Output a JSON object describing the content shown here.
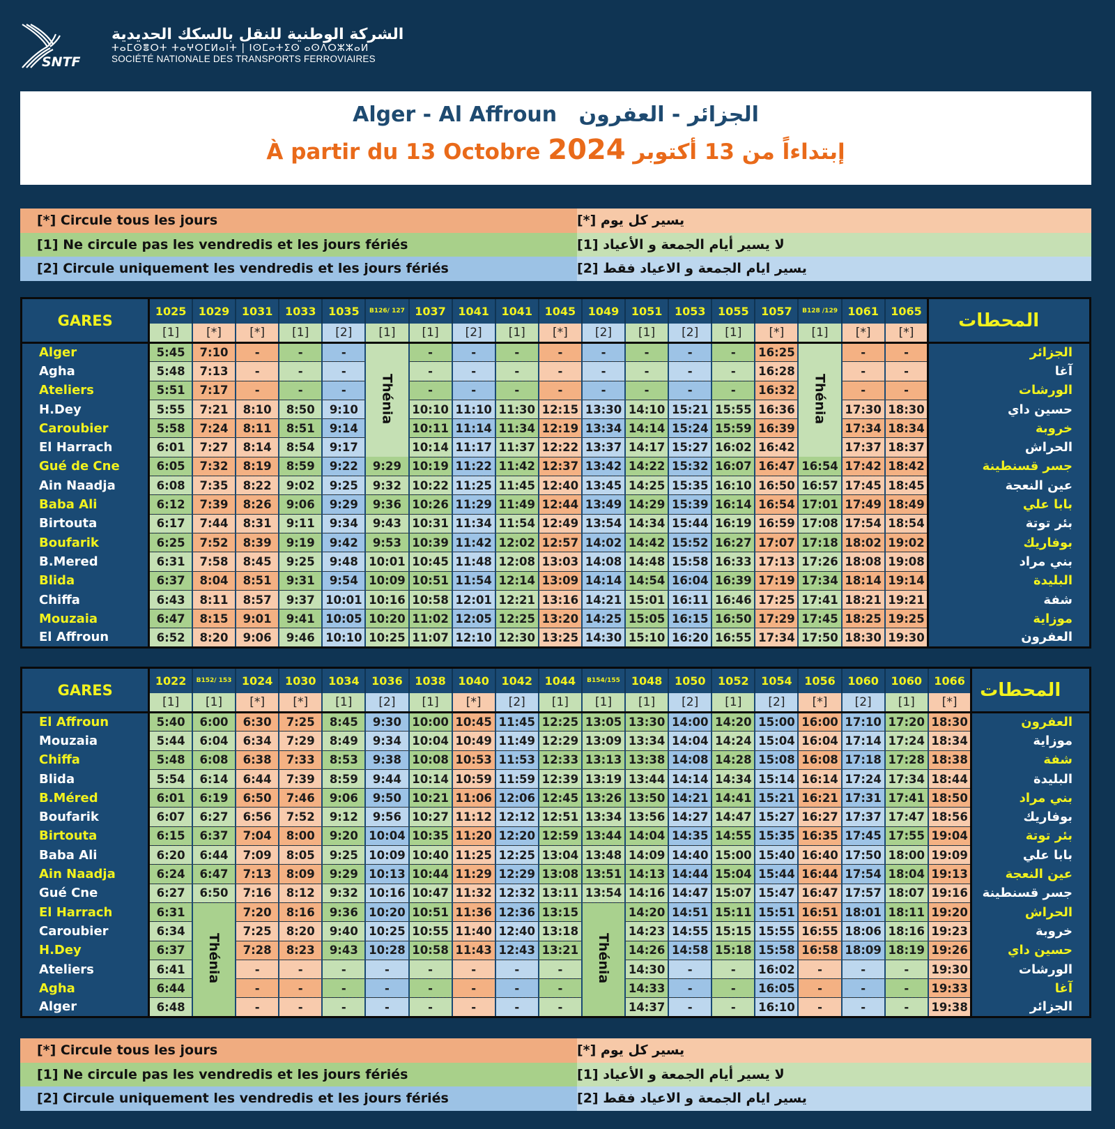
{
  "header": {
    "logo_text": "SNTF",
    "company_ar": "الشركة الوطنية للنقل بالسكك الحديدية",
    "company_tifinagh": "ⵜⴰⵎⵙⴻⵔⵜ ⵜⴰⵖⵔⵎⵍⴰⵏⵜ | ⵏⵙⵎⴰⵜⵉⵙ ⴰⵙⴷⵔⵣⵣⴰⵍ",
    "company_fr": "SOCIÉTÉ NATIONALE DES TRANSPORTS FERROVIAIRES"
  },
  "title": {
    "route_fr": "Alger - Al Affroun",
    "route_ar": "الجزائر - العفرون",
    "validity_fr": "À partir du 13 Octobre",
    "year": "2024",
    "validity_ar": "إبتداءاً من 13 أكتوبر"
  },
  "colors": {
    "background": "#0f3453",
    "header": "#1a4a74",
    "station_highlight": "#f2f21e",
    "title_blue": "#1e4a70",
    "title_orange": "#e96a1a",
    "type_star": "#f4b183",
    "type_1": "#a9d18e",
    "type_2": "#9dc3e6"
  },
  "legend": [
    {
      "type": "*",
      "fr": "[*]  Circule tous les jours",
      "ar": "يسير كل يوم [*]"
    },
    {
      "type": "1",
      "fr": "[1]  Ne circule pas les vendredis et les jours fériés",
      "ar": "لا يسير أيام الجمعة و الأعياد [1]"
    },
    {
      "type": "2",
      "fr": "[2]  Circule uniquement les vendredis et les jours fériés",
      "ar": "يسير ايام الجمعة و الاعياد  فقط [2]"
    }
  ],
  "tables": [
    {
      "gares_label": "GARES",
      "stations_label_ar": "المحطات",
      "trains": [
        {
          "num": "1025",
          "type": "1"
        },
        {
          "num": "1029",
          "type": "*"
        },
        {
          "num": "1031",
          "type": "*"
        },
        {
          "num": "1033",
          "type": "1"
        },
        {
          "num": "1035",
          "type": "2"
        },
        {
          "num": "B126/ 127",
          "type": "1"
        },
        {
          "num": "1037",
          "type": "1"
        },
        {
          "num": "1041",
          "type": "2"
        },
        {
          "num": "1041",
          "type": "1"
        },
        {
          "num": "1045",
          "type": "*"
        },
        {
          "num": "1049",
          "type": "2"
        },
        {
          "num": "1051",
          "type": "1"
        },
        {
          "num": "1053",
          "type": "2"
        },
        {
          "num": "1055",
          "type": "1"
        },
        {
          "num": "1057",
          "type": "*"
        },
        {
          "num": "B128 /129",
          "type": "1"
        },
        {
          "num": "1061",
          "type": "*"
        },
        {
          "num": "1065",
          "type": "*"
        }
      ],
      "merged": [
        {
          "column": 5,
          "from_row": 0,
          "to_row": 5,
          "label": "Thénia"
        },
        {
          "column": 15,
          "from_row": 0,
          "to_row": 5,
          "label": "Thénia"
        }
      ],
      "stations": [
        {
          "fr": "Alger",
          "ar": "الجزائر",
          "times": [
            "5:45",
            "7:10",
            "-",
            "-",
            "-",
            null,
            "-",
            "-",
            "-",
            "-",
            "-",
            "-",
            "-",
            "-",
            "16:25",
            null,
            "-",
            "-"
          ]
        },
        {
          "fr": "Agha",
          "ar": "آغا",
          "times": [
            "5:48",
            "7:13",
            "-",
            "-",
            "-",
            null,
            "-",
            "-",
            "-",
            "-",
            "-",
            "-",
            "-",
            "-",
            "16:28",
            null,
            "-",
            "-"
          ]
        },
        {
          "fr": "Ateliers",
          "ar": "الورشات",
          "times": [
            "5:51",
            "7:17",
            "-",
            "-",
            "-",
            null,
            "-",
            "-",
            "-",
            "-",
            "-",
            "-",
            "-",
            "-",
            "16:32",
            null,
            "-",
            "-"
          ]
        },
        {
          "fr": "H.Dey",
          "ar": "حسين داي",
          "times": [
            "5:55",
            "7:21",
            "8:10",
            "8:50",
            "9:10",
            null,
            "10:10",
            "11:10",
            "11:30",
            "12:15",
            "13:30",
            "14:10",
            "15:21",
            "15:55",
            "16:36",
            null,
            "17:30",
            "18:30"
          ]
        },
        {
          "fr": "Caroubier",
          "ar": "خروبة",
          "times": [
            "5:58",
            "7:24",
            "8:11",
            "8:51",
            "9:14",
            null,
            "10:11",
            "11:14",
            "11:34",
            "12:19",
            "13:34",
            "14:14",
            "15:24",
            "15:59",
            "16:39",
            null,
            "17:34",
            "18:34"
          ]
        },
        {
          "fr": "El Harrach",
          "ar": "الحراش",
          "times": [
            "6:01",
            "7:27",
            "8:14",
            "8:54",
            "9:17",
            null,
            "10:14",
            "11:17",
            "11:37",
            "12:22",
            "13:37",
            "14:17",
            "15:27",
            "16:02",
            "16:42",
            null,
            "17:37",
            "18:37"
          ]
        },
        {
          "fr": "Gué de Cne",
          "ar": "جسر قسنطينة",
          "times": [
            "6:05",
            "7:32",
            "8:19",
            "8:59",
            "9:22",
            "9:29",
            "10:19",
            "11:22",
            "11:42",
            "12:37",
            "13:42",
            "14:22",
            "15:32",
            "16:07",
            "16:47",
            "16:54",
            "17:42",
            "18:42"
          ]
        },
        {
          "fr": "Ain Naadja",
          "ar": "عين النعجة",
          "times": [
            "6:08",
            "7:35",
            "8:22",
            "9:02",
            "9:25",
            "9:32",
            "10:22",
            "11:25",
            "11:45",
            "12:40",
            "13:45",
            "14:25",
            "15:35",
            "16:10",
            "16:50",
            "16:57",
            "17:45",
            "18:45"
          ]
        },
        {
          "fr": "Baba Ali",
          "ar": "بابا علي",
          "times": [
            "6:12",
            "7:39",
            "8:26",
            "9:06",
            "9:29",
            "9:36",
            "10:26",
            "11:29",
            "11:49",
            "12:44",
            "13:49",
            "14:29",
            "15:39",
            "16:14",
            "16:54",
            "17:01",
            "17:49",
            "18:49"
          ]
        },
        {
          "fr": "Birtouta",
          "ar": "بئر توتة",
          "times": [
            "6:17",
            "7:44",
            "8:31",
            "9:11",
            "9:34",
            "9:43",
            "10:31",
            "11:34",
            "11:54",
            "12:49",
            "13:54",
            "14:34",
            "15:44",
            "16:19",
            "16:59",
            "17:08",
            "17:54",
            "18:54"
          ]
        },
        {
          "fr": "Boufarik",
          "ar": "بوفاريك",
          "times": [
            "6:25",
            "7:52",
            "8:39",
            "9:19",
            "9:42",
            "9:53",
            "10:39",
            "11:42",
            "12:02",
            "12:57",
            "14:02",
            "14:42",
            "15:52",
            "16:27",
            "17:07",
            "17:18",
            "18:02",
            "19:02"
          ]
        },
        {
          "fr": "B.Mered",
          "ar": "بني مراد",
          "times": [
            "6:31",
            "7:58",
            "8:45",
            "9:25",
            "9:48",
            "10:01",
            "10:45",
            "11:48",
            "12:08",
            "13:03",
            "14:08",
            "14:48",
            "15:58",
            "16:33",
            "17:13",
            "17:26",
            "18:08",
            "19:08"
          ]
        },
        {
          "fr": "Blida",
          "ar": "البليدة",
          "times": [
            "6:37",
            "8:04",
            "8:51",
            "9:31",
            "9:54",
            "10:09",
            "10:51",
            "11:54",
            "12:14",
            "13:09",
            "14:14",
            "14:54",
            "16:04",
            "16:39",
            "17:19",
            "17:34",
            "18:14",
            "19:14"
          ]
        },
        {
          "fr": "Chiffa",
          "ar": "شفة",
          "times": [
            "6:43",
            "8:11",
            "8:57",
            "9:37",
            "10:01",
            "10:16",
            "10:58",
            "12:01",
            "12:21",
            "13:16",
            "14:21",
            "15:01",
            "16:11",
            "16:46",
            "17:25",
            "17:41",
            "18:21",
            "19:21"
          ]
        },
        {
          "fr": "Mouzaia",
          "ar": "موزاية",
          "times": [
            "6:47",
            "8:15",
            "9:01",
            "9:41",
            "10:05",
            "10:20",
            "11:02",
            "12:05",
            "12:25",
            "13:20",
            "14:25",
            "15:05",
            "16:15",
            "16:50",
            "17:29",
            "17:45",
            "18:25",
            "19:25"
          ]
        },
        {
          "fr": "El Affroun",
          "ar": "العفرون",
          "times": [
            "6:52",
            "8:20",
            "9:06",
            "9:46",
            "10:10",
            "10:25",
            "11:07",
            "12:10",
            "12:30",
            "13:25",
            "14:30",
            "15:10",
            "16:20",
            "16:55",
            "17:34",
            "17:50",
            "18:30",
            "19:30"
          ]
        }
      ]
    },
    {
      "gares_label": "GARES",
      "stations_label_ar": "المحطات",
      "trains": [
        {
          "num": "1022",
          "type": "1"
        },
        {
          "num": "B152/ 153",
          "type": "1"
        },
        {
          "num": "1024",
          "type": "*"
        },
        {
          "num": "1030",
          "type": "*"
        },
        {
          "num": "1034",
          "type": "1"
        },
        {
          "num": "1036",
          "type": "2"
        },
        {
          "num": "1038",
          "type": "1"
        },
        {
          "num": "1040",
          "type": "*"
        },
        {
          "num": "1042",
          "type": "2"
        },
        {
          "num": "1044",
          "type": "1"
        },
        {
          "num": "B154/155",
          "type": "1"
        },
        {
          "num": "1048",
          "type": "1"
        },
        {
          "num": "1050",
          "type": "2"
        },
        {
          "num": "1052",
          "type": "1"
        },
        {
          "num": "1054",
          "type": "2"
        },
        {
          "num": "1056",
          "type": "*"
        },
        {
          "num": "1060",
          "type": "2"
        },
        {
          "num": "1060",
          "type": "1"
        },
        {
          "num": "1066",
          "type": "*"
        }
      ],
      "merged": [
        {
          "column": 1,
          "from_row": 10,
          "to_row": 15,
          "label": "Thénia"
        },
        {
          "column": 10,
          "from_row": 10,
          "to_row": 15,
          "label": "Thénia"
        }
      ],
      "stations": [
        {
          "fr": "El Affroun",
          "ar": "العفرون",
          "times": [
            "5:40",
            "6:00",
            "6:30",
            "7:25",
            "8:45",
            "9:30",
            "10:00",
            "10:45",
            "11:45",
            "12:25",
            "13:05",
            "13:30",
            "14:00",
            "14:20",
            "15:00",
            "16:00",
            "17:10",
            "17:20",
            "18:30"
          ]
        },
        {
          "fr": "Mouzaia",
          "ar": "موزاية",
          "times": [
            "5:44",
            "6:04",
            "6:34",
            "7:29",
            "8:49",
            "9:34",
            "10:04",
            "10:49",
            "11:49",
            "12:29",
            "13:09",
            "13:34",
            "14:04",
            "14:24",
            "15:04",
            "16:04",
            "17:14",
            "17:24",
            "18:34"
          ]
        },
        {
          "fr": "Chiffa",
          "ar": "شفة",
          "times": [
            "5:48",
            "6:08",
            "6:38",
            "7:33",
            "8:53",
            "9:38",
            "10:08",
            "10:53",
            "11:53",
            "12:33",
            "13:13",
            "13:38",
            "14:08",
            "14:28",
            "15:08",
            "16:08",
            "17:18",
            "17:28",
            "18:38"
          ]
        },
        {
          "fr": "Blida",
          "ar": "البليدة",
          "times": [
            "5:54",
            "6:14",
            "6:44",
            "7:39",
            "8:59",
            "9:44",
            "10:14",
            "10:59",
            "11:59",
            "12:39",
            "13:19",
            "13:44",
            "14:14",
            "14:34",
            "15:14",
            "16:14",
            "17:24",
            "17:34",
            "18:44"
          ]
        },
        {
          "fr": "B.Méred",
          "ar": "بني مراد",
          "times": [
            "6:01",
            "6:19",
            "6:50",
            "7:46",
            "9:06",
            "9:50",
            "10:21",
            "11:06",
            "12:06",
            "12:45",
            "13:26",
            "13:50",
            "14:21",
            "14:41",
            "15:21",
            "16:21",
            "17:31",
            "17:41",
            "18:50"
          ]
        },
        {
          "fr": "Boufarik",
          "ar": "بوفاريك",
          "times": [
            "6:07",
            "6:27",
            "6:56",
            "7:52",
            "9:12",
            "9:56",
            "10:27",
            "11:12",
            "12:12",
            "12:51",
            "13:34",
            "13:56",
            "14:27",
            "14:47",
            "15:27",
            "16:27",
            "17:37",
            "17:47",
            "18:56"
          ]
        },
        {
          "fr": "Birtouta",
          "ar": "بئر توتة",
          "times": [
            "6:15",
            "6:37",
            "7:04",
            "8:00",
            "9:20",
            "10:04",
            "10:35",
            "11:20",
            "12:20",
            "12:59",
            "13:44",
            "14:04",
            "14:35",
            "14:55",
            "15:35",
            "16:35",
            "17:45",
            "17:55",
            "19:04"
          ]
        },
        {
          "fr": "Baba Ali",
          "ar": "بابا علي",
          "times": [
            "6:20",
            "6:44",
            "7:09",
            "8:05",
            "9:25",
            "10:09",
            "10:40",
            "11:25",
            "12:25",
            "13:04",
            "13:48",
            "14:09",
            "14:40",
            "15:00",
            "15:40",
            "16:40",
            "17:50",
            "18:00",
            "19:09"
          ]
        },
        {
          "fr": "Ain Naadja",
          "ar": "عين النعجة",
          "times": [
            "6:24",
            "6:47",
            "7:13",
            "8:09",
            "9:29",
            "10:13",
            "10:44",
            "11:29",
            "12:29",
            "13:08",
            "13:51",
            "14:13",
            "14:44",
            "15:04",
            "15:44",
            "16:44",
            "17:54",
            "18:04",
            "19:13"
          ]
        },
        {
          "fr": "Gué Cne",
          "ar": "جسر قسنطينة",
          "times": [
            "6:27",
            "6:50",
            "7:16",
            "8:12",
            "9:32",
            "10:16",
            "10:47",
            "11:32",
            "12:32",
            "13:11",
            "13:54",
            "14:16",
            "14:47",
            "15:07",
            "15:47",
            "16:47",
            "17:57",
            "18:07",
            "19:16"
          ]
        },
        {
          "fr": "El Harrach",
          "ar": "الحراش",
          "times": [
            "6:31",
            null,
            "7:20",
            "8:16",
            "9:36",
            "10:20",
            "10:51",
            "11:36",
            "12:36",
            "13:15",
            null,
            "14:20",
            "14:51",
            "15:11",
            "15:51",
            "16:51",
            "18:01",
            "18:11",
            "19:20"
          ]
        },
        {
          "fr": "Caroubier",
          "ar": "خروبة",
          "times": [
            "6:34",
            null,
            "7:25",
            "8:20",
            "9:40",
            "10:25",
            "10:55",
            "11:40",
            "12:40",
            "13:18",
            null,
            "14:23",
            "14:55",
            "15:15",
            "15:55",
            "16:55",
            "18:06",
            "18:16",
            "19:23"
          ]
        },
        {
          "fr": "H.Dey",
          "ar": "حسين داي",
          "times": [
            "6:37",
            null,
            "7:28",
            "8:23",
            "9:43",
            "10:28",
            "10:58",
            "11:43",
            "12:43",
            "13:21",
            null,
            "14:26",
            "14:58",
            "15:18",
            "15:58",
            "16:58",
            "18:09",
            "18:19",
            "19:26"
          ]
        },
        {
          "fr": "Ateliers",
          "ar": "الورشات",
          "times": [
            "6:41",
            null,
            "-",
            "-",
            "-",
            "-",
            "-",
            "-",
            "-",
            "-",
            null,
            "14:30",
            "-",
            "-",
            "16:02",
            "-",
            "-",
            "-",
            "19:30"
          ]
        },
        {
          "fr": "Agha",
          "ar": "آغا",
          "times": [
            "6:44",
            null,
            "-",
            "-",
            "-",
            "-",
            "-",
            "-",
            "-",
            "-",
            null,
            "14:33",
            "-",
            "-",
            "16:05",
            "-",
            "-",
            "-",
            "19:33"
          ]
        },
        {
          "fr": "Alger",
          "ar": "الجزائر",
          "times": [
            "6:48",
            null,
            "-",
            "-",
            "-",
            "-",
            "-",
            "-",
            "-",
            "-",
            null,
            "14:37",
            "-",
            "-",
            "16:10",
            "-",
            "-",
            "-",
            "19:38"
          ]
        }
      ]
    }
  ]
}
